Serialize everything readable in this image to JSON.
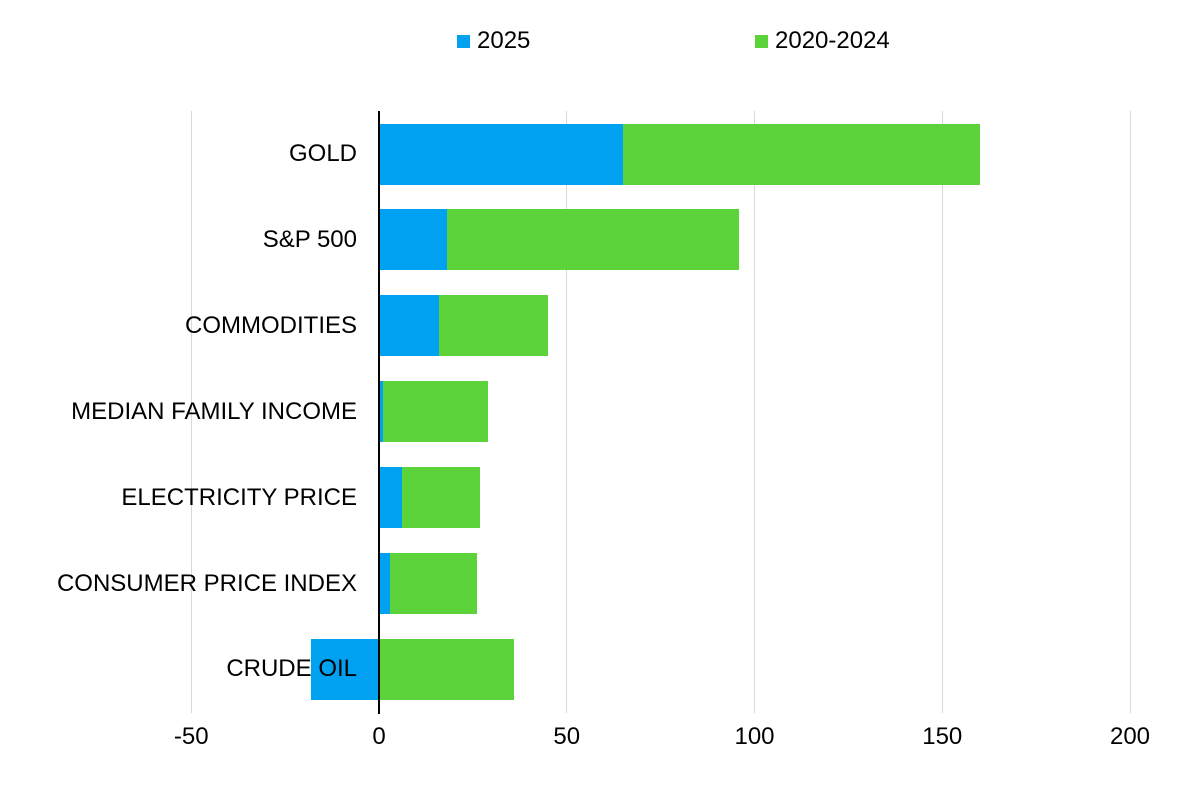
{
  "chart_data": {
    "type": "bar",
    "orientation": "horizontal",
    "stacked": true,
    "title": "",
    "xlabel": "",
    "ylabel": "",
    "xlim": [
      -50,
      200
    ],
    "x_ticks": [
      -50,
      0,
      50,
      100,
      150,
      200
    ],
    "grid": "vertical-gridlines-on",
    "legend_position": "top",
    "categories": [
      "GOLD",
      "S&P 500",
      "COMMODITIES",
      "MEDIAN FAMILY INCOME",
      "ELECTRICITY PRICE",
      "CONSUMER PRICE INDEX",
      "CRUDE OIL"
    ],
    "series": [
      {
        "name": "2025",
        "color": "#00a1f1",
        "values": [
          65,
          18,
          16,
          1,
          6,
          3,
          -18
        ]
      },
      {
        "name": "2020-2024",
        "color": "#5cd33a",
        "values": [
          95,
          78,
          29,
          28,
          21,
          23,
          36
        ]
      }
    ],
    "stack_totals": [
      160,
      96,
      45,
      29,
      27,
      26,
      36
    ],
    "axis_color": "#000000",
    "gridline_color": "#d8d8d8"
  }
}
